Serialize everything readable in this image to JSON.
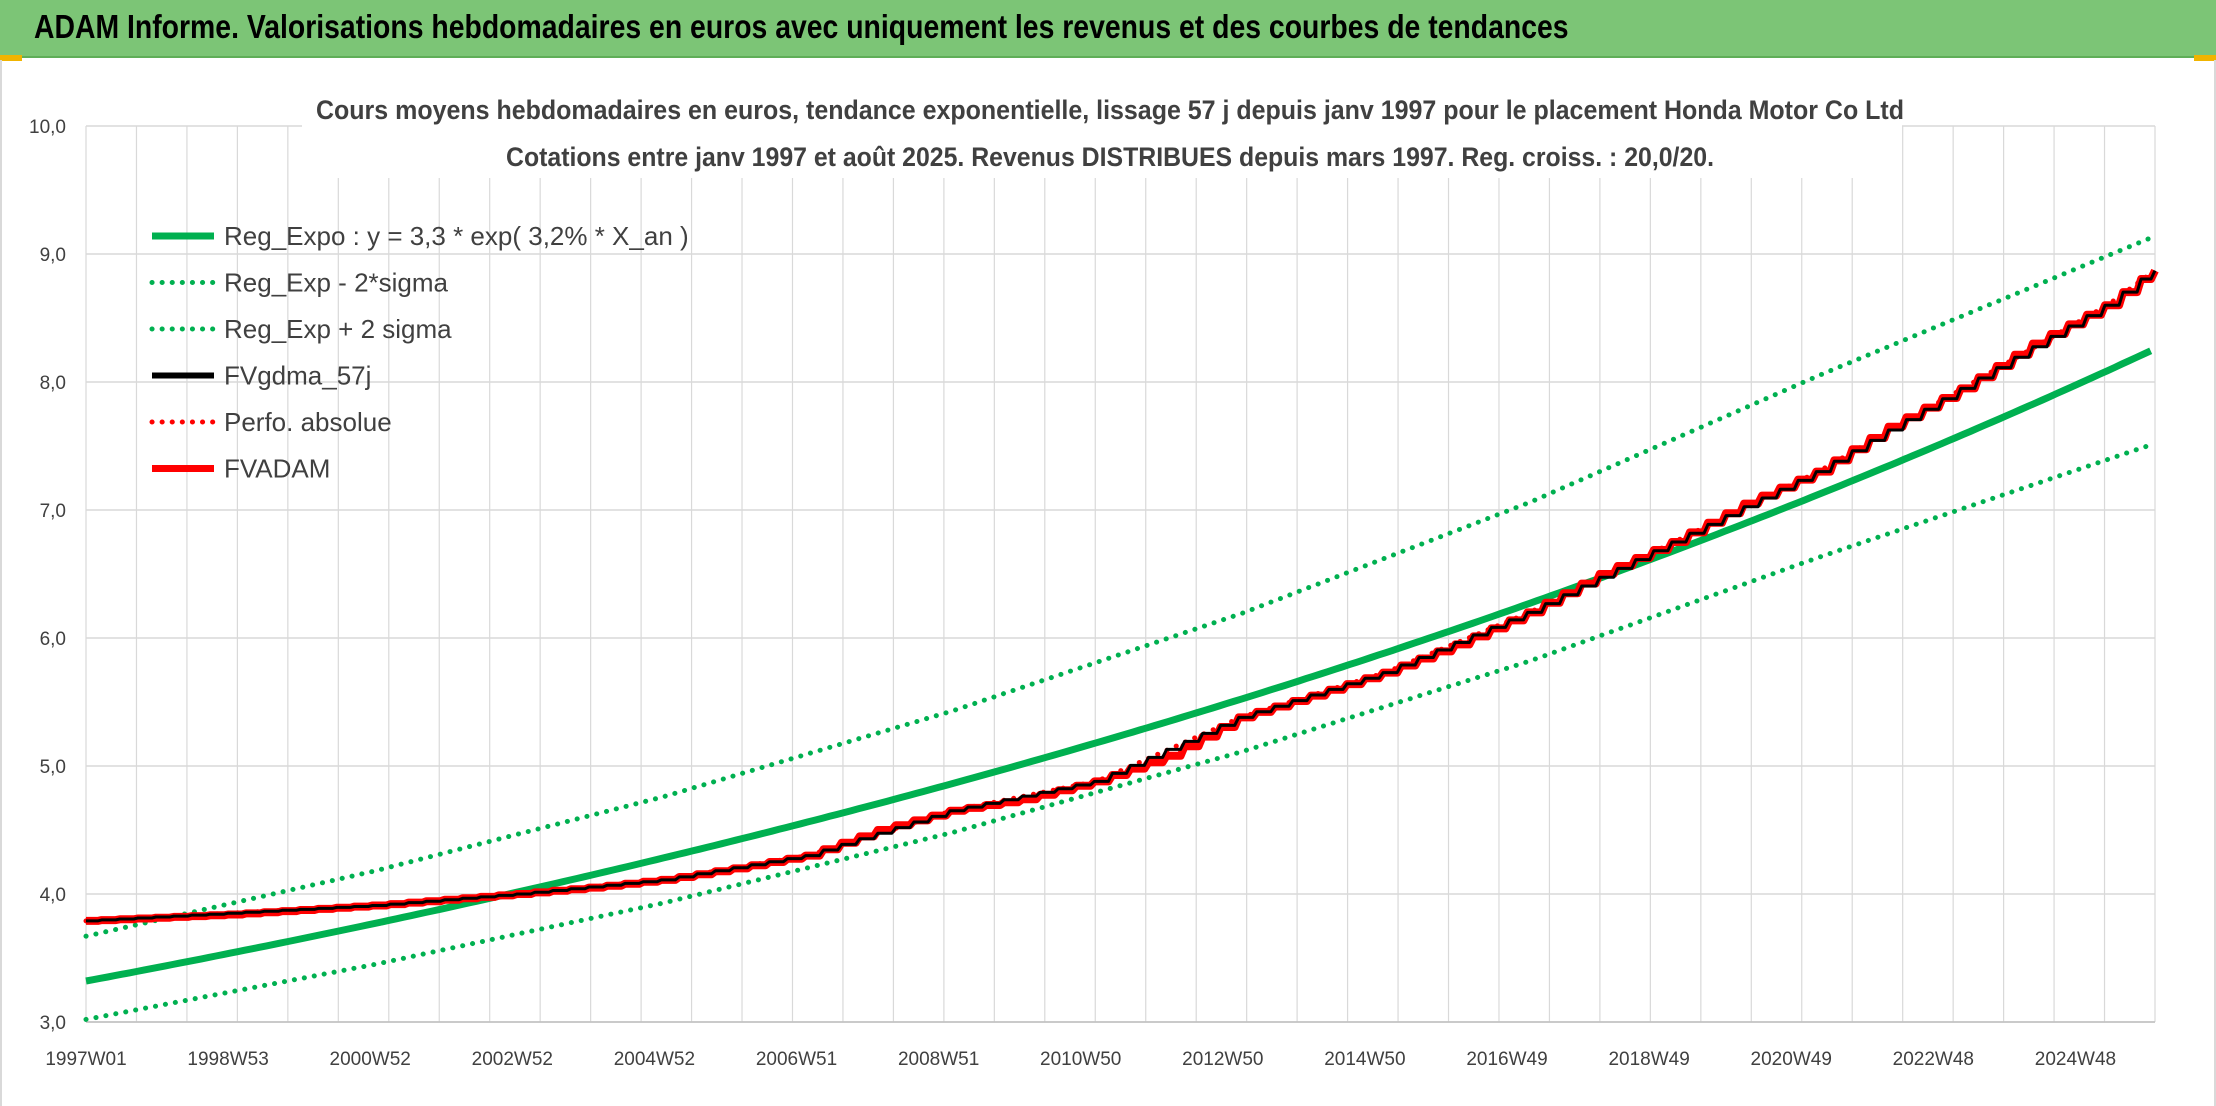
{
  "banner": {
    "title": "ADAM Informe. Valorisations hebdomadaires en euros avec uniquement les revenus et des courbes de tendances"
  },
  "colors": {
    "banner_bg": "#7cc576",
    "reg_expo": "#00b050",
    "sigma_band": "#00b050",
    "fvgdma": "#000000",
    "perfo": "#ff0000",
    "fvadam": "#ff0000",
    "grid": "#d9d9d9"
  },
  "chart_data": {
    "type": "line",
    "title_line1": "Cours moyens hebdomadaires en euros, tendance exponentielle, lissage 57 j depuis janv 1997 pour le placement Honda Motor Co Ltd",
    "title_line2": "Cotations entre janv 1997 et août 2025. Revenus DISTRIBUES depuis mars 1997. Reg. croiss. : 20,0/20.",
    "xlabel": "",
    "ylabel": "",
    "ylim": [
      3.0,
      10.0
    ],
    "y_ticks": [
      "3,0",
      "4,0",
      "5,0",
      "6,0",
      "7,0",
      "8,0",
      "9,0",
      "10,0"
    ],
    "x_ticks": [
      "1997W01",
      "1998W53",
      "2000W52",
      "2002W52",
      "2004W52",
      "2006W51",
      "2008W51",
      "2010W50",
      "2012W50",
      "2014W50",
      "2016W49",
      "2018W49",
      "2020W49",
      "2022W48",
      "2024W48"
    ],
    "x_range_years": [
      1997.0,
      2025.66
    ],
    "grid": "vertical and horizontal",
    "legend_position": "top-left",
    "series": [
      {
        "name": "Reg_Expo : y = 3,3 * exp( 3,2% *  X_an )",
        "style": "solid-thick",
        "color": "#00b050",
        "formula": {
          "a": 3.32,
          "r": 0.0318
        },
        "x": [
          1997.0,
          2001.0,
          2005.0,
          2009.0,
          2013.0,
          2017.0,
          2021.0,
          2025.66
        ],
        "values": [
          3.32,
          3.79,
          4.32,
          4.92,
          5.61,
          6.4,
          7.3,
          8.28
        ]
      },
      {
        "name": "Reg_Exp - 2*sigma",
        "style": "dotted",
        "color": "#00b050",
        "x": [
          1997.0,
          2001.0,
          2005.0,
          2009.0,
          2013.0,
          2017.0,
          2021.0,
          2025.66
        ],
        "values": [
          3.02,
          3.45,
          3.93,
          4.48,
          5.11,
          5.82,
          6.63,
          7.52
        ]
      },
      {
        "name": "Reg_Exp + 2 sigma",
        "style": "dotted",
        "color": "#00b050",
        "x": [
          1997.0,
          2001.0,
          2005.0,
          2009.0,
          2013.0,
          2017.0,
          2021.0,
          2025.66
        ],
        "values": [
          3.67,
          4.18,
          4.76,
          5.43,
          6.19,
          7.06,
          8.05,
          9.14
        ]
      },
      {
        "name": "FVgdma_57j",
        "style": "solid",
        "color": "#000000",
        "x": [
          1997.0,
          2001.0,
          2003.0,
          2005.0,
          2007.0,
          2009.0,
          2011.0,
          2013.0,
          2015.0,
          2017.0,
          2019.0,
          2021.0,
          2023.0,
          2025.0,
          2025.66
        ],
        "values": [
          3.79,
          3.91,
          4.0,
          4.11,
          4.3,
          4.65,
          4.88,
          5.38,
          5.73,
          6.2,
          6.75,
          7.3,
          7.95,
          8.6,
          8.87
        ]
      },
      {
        "name": "Perfo. absolue",
        "style": "dotted",
        "color": "#ff0000",
        "x": [
          1997.0,
          2001.0,
          2003.0,
          2005.0,
          2007.0,
          2009.0,
          2011.0,
          2013.0,
          2015.0,
          2017.0,
          2019.0,
          2021.0,
          2023.0,
          2025.0,
          2025.66
        ],
        "values": [
          3.79,
          3.91,
          4.0,
          4.11,
          4.3,
          4.65,
          4.88,
          5.38,
          5.73,
          6.2,
          6.75,
          7.3,
          7.95,
          8.6,
          8.87
        ]
      },
      {
        "name": "FVADAM",
        "style": "solid-thick-stepped",
        "color": "#ff0000",
        "x": [
          1997.0,
          1999.0,
          2001.0,
          2003.0,
          2004.0,
          2005.0,
          2006.0,
          2007.0,
          2008.0,
          2009.0,
          2010.0,
          2011.0,
          2012.0,
          2013.0,
          2014.0,
          2015.0,
          2016.0,
          2017.0,
          2018.0,
          2019.0,
          2020.0,
          2021.0,
          2022.0,
          2023.0,
          2024.0,
          2025.0,
          2025.66
        ],
        "values": [
          3.79,
          3.84,
          3.91,
          4.0,
          4.05,
          4.11,
          4.2,
          4.3,
          4.5,
          4.65,
          4.74,
          4.88,
          5.08,
          5.38,
          5.55,
          5.73,
          5.95,
          6.2,
          6.5,
          6.75,
          7.05,
          7.3,
          7.65,
          7.95,
          8.3,
          8.6,
          8.87
        ]
      }
    ]
  }
}
